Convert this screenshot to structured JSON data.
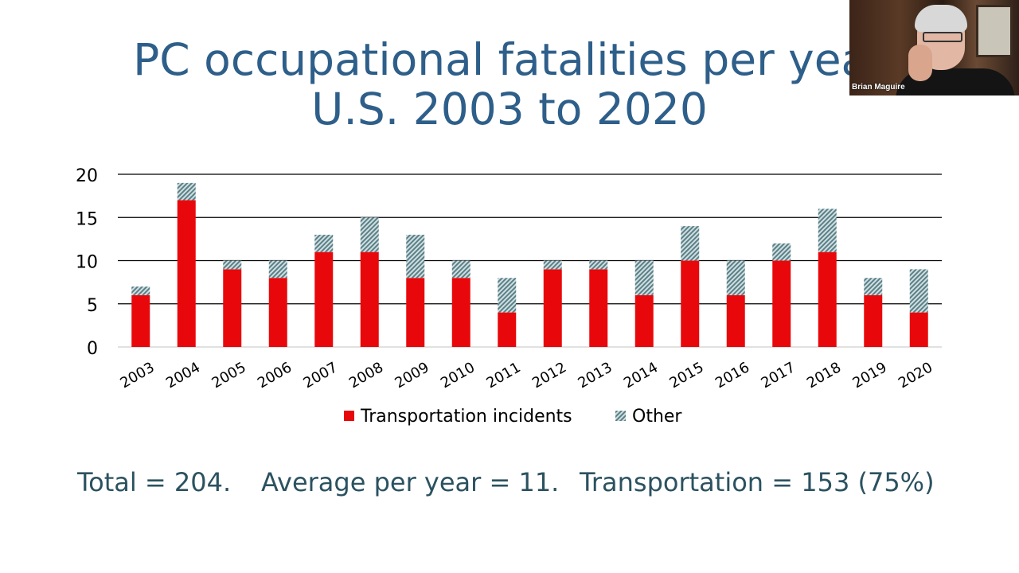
{
  "slide": {
    "title_line1": "PC occupational fatalities per year",
    "title_line2": "U.S. 2003 to 2020",
    "summary": {
      "total": "Total = 204.",
      "average": "Average per year = 11.",
      "transportation": "Transportation = 153 (75%)"
    }
  },
  "webcam": {
    "participant_name": "Brian Maguire"
  },
  "colors": {
    "title": "#2e5f8a",
    "transportation": "#e8080b",
    "other_hatch_dark": "#5b7f86",
    "other_hatch_light": "#cfdfe2",
    "summary_text": "#2b5260"
  },
  "chart_data": {
    "type": "bar",
    "stacked": true,
    "categories": [
      "2003",
      "2004",
      "2005",
      "2006",
      "2007",
      "2008",
      "2009",
      "2010",
      "2011",
      "2012",
      "2013",
      "2014",
      "2015",
      "2016",
      "2017",
      "2018",
      "2019",
      "2020"
    ],
    "series": [
      {
        "name": "Transportation incidents",
        "values": [
          6,
          17,
          9,
          8,
          11,
          11,
          8,
          8,
          4,
          9,
          9,
          6,
          10,
          6,
          10,
          11,
          6,
          4
        ]
      },
      {
        "name": "Other",
        "values": [
          1,
          2,
          1,
          2,
          2,
          4,
          5,
          2,
          4,
          1,
          1,
          4,
          4,
          4,
          2,
          5,
          2,
          5
        ]
      }
    ],
    "ylim": [
      0,
      20
    ],
    "yticks": [
      0,
      5,
      10,
      15,
      20
    ],
    "grid": true,
    "legend": "bottom"
  }
}
